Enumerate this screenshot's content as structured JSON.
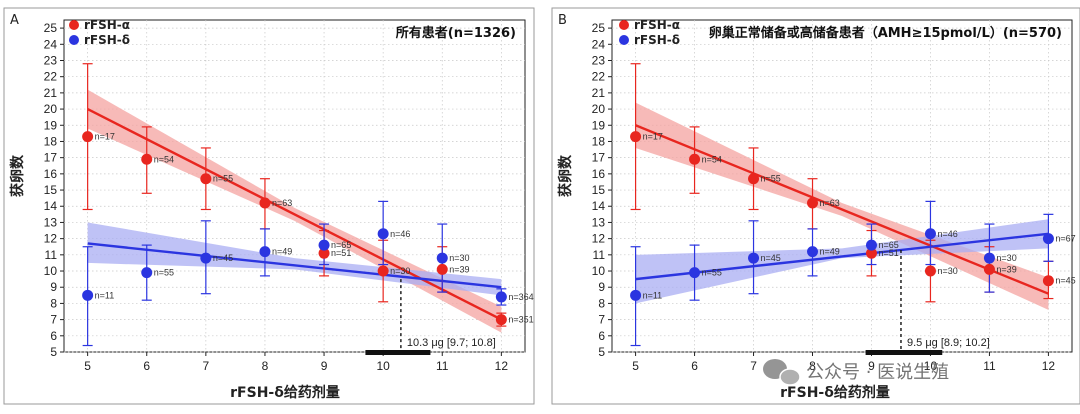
{
  "colors": {
    "alpha": "#e8261f",
    "delta": "#2b35e0",
    "alpha_band": "#f4a3a0",
    "delta_band": "#a9adf3"
  },
  "watermark": {
    "text": "公众号 · 医说生殖",
    "icon": "wechat-icon"
  },
  "chart_data": [
    {
      "type": "scatter",
      "panel_letter": "A",
      "title": "所有患者(n=1326)",
      "xlabel": "rFSH-δ给药剂量",
      "ylabel": "获卵数",
      "xlim": [
        4.6,
        12.4
      ],
      "ylim": [
        5,
        25.5
      ],
      "xticks": [
        5,
        6,
        7,
        8,
        9,
        10,
        11,
        12
      ],
      "yticks": [
        5,
        6,
        7,
        8,
        9,
        10,
        11,
        12,
        13,
        14,
        15,
        16,
        17,
        18,
        19,
        20,
        21,
        22,
        23,
        24,
        25
      ],
      "legend": [
        {
          "label": "rFSH-α",
          "series": "alpha"
        },
        {
          "label": "rFSH-δ",
          "series": "delta"
        }
      ],
      "series": [
        {
          "name": "rFSH-α",
          "key": "alpha",
          "points": [
            {
              "x": 5,
              "y": 18.3,
              "lo": 13.8,
              "hi": 22.8,
              "n": "n=17"
            },
            {
              "x": 6,
              "y": 16.9,
              "lo": 14.8,
              "hi": 18.9,
              "n": "n=54"
            },
            {
              "x": 7,
              "y": 15.7,
              "lo": 13.8,
              "hi": 17.6,
              "n": "n=55"
            },
            {
              "x": 8,
              "y": 14.2,
              "lo": 12.6,
              "hi": 15.7,
              "n": "n=63"
            },
            {
              "x": 9,
              "y": 11.1,
              "lo": 9.7,
              "hi": 12.5,
              "n": "n=51"
            },
            {
              "x": 10,
              "y": 10.0,
              "lo": 8.1,
              "hi": 11.9,
              "n": "n=30"
            },
            {
              "x": 11,
              "y": 10.1,
              "lo": 8.7,
              "hi": 11.5,
              "n": "n=39"
            },
            {
              "x": 12,
              "y": 7.0,
              "lo": 6.6,
              "hi": 7.4,
              "n": "n=351"
            }
          ],
          "fit": {
            "x": [
              5,
              12
            ],
            "y": [
              20.0,
              7.0
            ]
          },
          "band": {
            "x": [
              5,
              8.5,
              12
            ],
            "upper": [
              21.2,
              13.9,
              7.8
            ],
            "lower": [
              18.8,
              13.1,
              6.2
            ]
          }
        },
        {
          "name": "rFSH-δ",
          "key": "delta",
          "points": [
            {
              "x": 5,
              "y": 8.5,
              "lo": 5.4,
              "hi": 11.5,
              "n": "n=11"
            },
            {
              "x": 6,
              "y": 9.9,
              "lo": 8.2,
              "hi": 11.6,
              "n": "n=55"
            },
            {
              "x": 7,
              "y": 10.8,
              "lo": 8.6,
              "hi": 13.1,
              "n": "n=45"
            },
            {
              "x": 8,
              "y": 11.2,
              "lo": 9.7,
              "hi": 12.6,
              "n": "n=49"
            },
            {
              "x": 9,
              "y": 11.6,
              "lo": 10.4,
              "hi": 12.9,
              "n": "n=65"
            },
            {
              "x": 10,
              "y": 12.3,
              "lo": 10.4,
              "hi": 14.3,
              "n": "n=46"
            },
            {
              "x": 11,
              "y": 10.8,
              "lo": 8.7,
              "hi": 12.9,
              "n": "n=30"
            },
            {
              "x": 12,
              "y": 8.4,
              "lo": 7.9,
              "hi": 8.9,
              "n": "n=364"
            }
          ],
          "fit": {
            "x": [
              5,
              12
            ],
            "y": [
              11.7,
              9.0
            ]
          },
          "band": {
            "x": [
              5,
              8.5,
              12
            ],
            "upper": [
              13.0,
              10.8,
              9.5
            ],
            "lower": [
              10.5,
              10.1,
              8.5
            ]
          }
        }
      ],
      "annotation": {
        "text": "10.3 μg [9.7; 10.8]",
        "x": 10.3,
        "ci": [
          9.7,
          10.8
        ],
        "y_from": 9.5
      }
    },
    {
      "type": "scatter",
      "panel_letter": "B",
      "title": "卵巢正常储备或高储备患者（AMH≥15pmol/L）(n=570)",
      "xlabel": "rFSH-δ给药剂量",
      "ylabel": "获卵数",
      "xlim": [
        4.6,
        12.4
      ],
      "ylim": [
        5,
        25.5
      ],
      "xticks": [
        5,
        6,
        7,
        8,
        9,
        10,
        11,
        12
      ],
      "yticks": [
        5,
        6,
        7,
        8,
        9,
        10,
        11,
        12,
        13,
        14,
        15,
        16,
        17,
        18,
        19,
        20,
        21,
        22,
        23,
        24,
        25
      ],
      "legend": [
        {
          "label": "rFSH-α",
          "series": "alpha"
        },
        {
          "label": "rFSH-δ",
          "series": "delta"
        }
      ],
      "series": [
        {
          "name": "rFSH-α",
          "key": "alpha",
          "points": [
            {
              "x": 5,
              "y": 18.3,
              "lo": 13.8,
              "hi": 22.8,
              "n": "n=17"
            },
            {
              "x": 6,
              "y": 16.9,
              "lo": 14.8,
              "hi": 18.9,
              "n": "n=54"
            },
            {
              "x": 7,
              "y": 15.7,
              "lo": 13.8,
              "hi": 17.6,
              "n": "n=55"
            },
            {
              "x": 8,
              "y": 14.2,
              "lo": 12.6,
              "hi": 15.7,
              "n": "n=63"
            },
            {
              "x": 9,
              "y": 11.1,
              "lo": 9.7,
              "hi": 12.5,
              "n": "n=51"
            },
            {
              "x": 10,
              "y": 10.0,
              "lo": 8.1,
              "hi": 11.9,
              "n": "n=30"
            },
            {
              "x": 11,
              "y": 10.1,
              "lo": 8.7,
              "hi": 11.5,
              "n": "n=39"
            },
            {
              "x": 12,
              "y": 9.4,
              "lo": 8.3,
              "hi": 10.6,
              "n": "n=45"
            }
          ],
          "fit": {
            "x": [
              5,
              12
            ],
            "y": [
              19.0,
              8.6
            ]
          },
          "band": {
            "x": [
              5,
              8.5,
              12
            ],
            "upper": [
              20.4,
              14.2,
              9.6
            ],
            "lower": [
              17.6,
              13.4,
              7.6
            ]
          }
        },
        {
          "name": "rFSH-δ",
          "key": "delta",
          "points": [
            {
              "x": 5,
              "y": 8.5,
              "lo": 5.4,
              "hi": 11.5,
              "n": "n=11"
            },
            {
              "x": 6,
              "y": 9.9,
              "lo": 8.2,
              "hi": 11.6,
              "n": "n=55"
            },
            {
              "x": 7,
              "y": 10.8,
              "lo": 8.6,
              "hi": 13.1,
              "n": "n=45"
            },
            {
              "x": 8,
              "y": 11.2,
              "lo": 9.7,
              "hi": 12.6,
              "n": "n=49"
            },
            {
              "x": 9,
              "y": 11.6,
              "lo": 10.4,
              "hi": 12.9,
              "n": "n=65"
            },
            {
              "x": 10,
              "y": 12.3,
              "lo": 10.4,
              "hi": 14.3,
              "n": "n=46"
            },
            {
              "x": 11,
              "y": 10.8,
              "lo": 8.7,
              "hi": 12.9,
              "n": "n=30"
            },
            {
              "x": 12,
              "y": 12.0,
              "lo": 10.6,
              "hi": 13.5,
              "n": "n=67"
            }
          ],
          "fit": {
            "x": [
              5,
              12
            ],
            "y": [
              9.5,
              12.3
            ]
          },
          "band": {
            "x": [
              5,
              8.5,
              12
            ],
            "upper": [
              11.0,
              11.4,
              13.2
            ],
            "lower": [
              8.0,
              10.8,
              11.4
            ]
          }
        }
      ],
      "annotation": {
        "text": "9.5 μg [8.9; 10.2]",
        "x": 9.5,
        "ci": [
          8.9,
          10.2
        ],
        "y_from": 11.3
      }
    }
  ]
}
